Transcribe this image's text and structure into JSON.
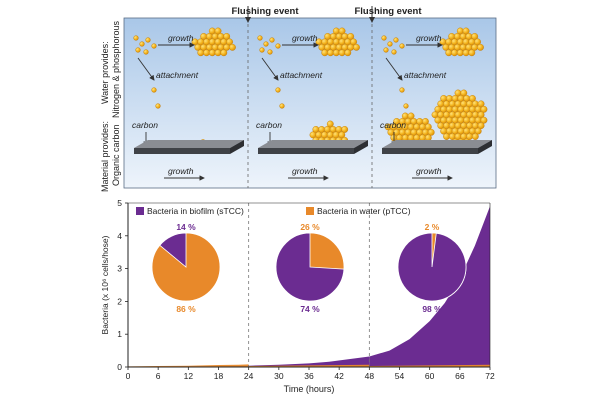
{
  "top": {
    "flushing_labels": [
      "Flushing event",
      "Flushing event"
    ],
    "side_label_water": "Water provides:",
    "side_label_nutrients": "Nitrogen & phosphorous",
    "side_label_material": "Material provides:",
    "side_label_carbon": "Organic carbon",
    "panel_labels": {
      "growth": "growth",
      "attachment": "attachment",
      "carbon": "carbon"
    },
    "colors": {
      "sky_top": "#a9c7e8",
      "sky_bottom": "#e8f1fb",
      "slab": "#4f5258",
      "cell": "#f2b21c",
      "cell_orange": "#e8892a"
    }
  },
  "chart_data": {
    "type": "area",
    "title": "",
    "xlabel": "Time (hours)",
    "ylabel": "Bacteria (x 10⁶ cells/hose)",
    "xlim": [
      0,
      72
    ],
    "ylim": [
      0,
      5
    ],
    "xticks": [
      0,
      6,
      12,
      18,
      24,
      30,
      36,
      42,
      48,
      54,
      60,
      66,
      72
    ],
    "yticks": [
      0,
      1,
      2,
      3,
      4,
      5
    ],
    "flush_times": [
      24,
      48
    ],
    "legend": [
      {
        "name": "Bacteria in biofilm (sTCC)",
        "color": "#6b2c91"
      },
      {
        "name": "Bacteria in water (pTCC)",
        "color": "#e8892a"
      }
    ],
    "series": [
      {
        "name": "Bacteria in biofilm (sTCC)",
        "color": "#6b2c91",
        "segments": [
          {
            "x": [
              0,
              12,
              18,
              22,
              24
            ],
            "y": [
              0.005,
              0.01,
              0.02,
              0.03,
              0.04
            ]
          },
          {
            "x": [
              24,
              30,
              36,
              40,
              44,
              48
            ],
            "y": [
              0.04,
              0.07,
              0.11,
              0.16,
              0.24,
              0.32
            ]
          },
          {
            "x": [
              48,
              52,
              56,
              60,
              63,
              66,
              69,
              72
            ],
            "y": [
              0.32,
              0.5,
              0.85,
              1.4,
              1.95,
              2.7,
              3.7,
              4.9
            ]
          }
        ]
      },
      {
        "name": "Bacteria in water (pTCC)",
        "color": "#e8892a",
        "segments": [
          {
            "x": [
              0,
              6,
              12,
              18,
              22,
              24
            ],
            "y": [
              0.02,
              0.03,
              0.04,
              0.06,
              0.07,
              0.08
            ]
          },
          {
            "x": [
              24,
              36,
              48
            ],
            "y": [
              0.03,
              0.05,
              0.07
            ]
          },
          {
            "x": [
              48,
              60,
              72
            ],
            "y": [
              0.03,
              0.05,
              0.07
            ]
          }
        ]
      }
    ],
    "pies": [
      {
        "biofilm_pct": 14,
        "water_pct": 86,
        "biofilm_label": "14 %",
        "water_label": "86 %"
      },
      {
        "biofilm_pct": 74,
        "water_pct": 26,
        "biofilm_label": "74 %",
        "water_label": "26 %"
      },
      {
        "biofilm_pct": 98,
        "water_pct": 2,
        "biofilm_label": "98 %",
        "water_label": "2 %"
      }
    ]
  }
}
